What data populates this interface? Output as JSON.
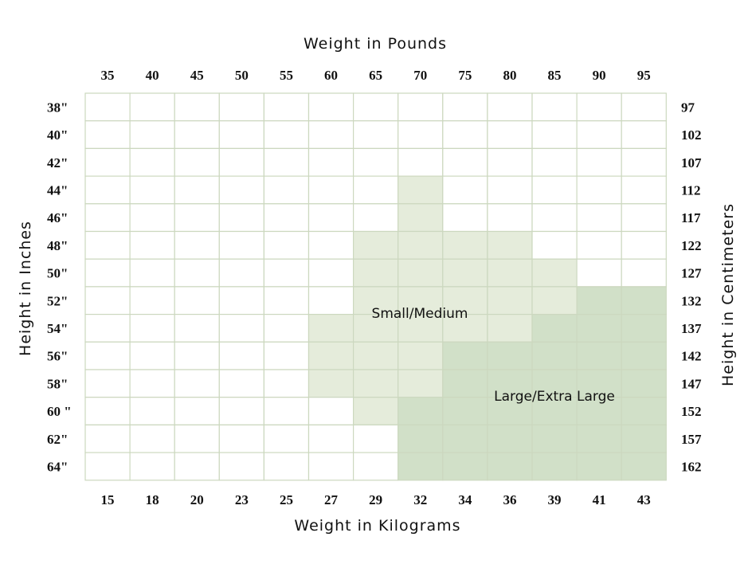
{
  "chart_data": {
    "type": "heatmap",
    "title": "",
    "xlabel_top": "Weight in Pounds",
    "xlabel_bottom": "Weight in Kilograms",
    "ylabel_left": "Height in Inches",
    "ylabel_right": "Height in Centimeters",
    "x_ticks_pounds": [
      "35",
      "40",
      "45",
      "50",
      "55",
      "60",
      "65",
      "70",
      "75",
      "80",
      "85",
      "90",
      "95"
    ],
    "x_ticks_kilograms": [
      "15",
      "18",
      "20",
      "23",
      "25",
      "27",
      "29",
      "32",
      "34",
      "36",
      "39",
      "41",
      "43"
    ],
    "y_ticks_inches": [
      "38\"",
      "40\"",
      "42\"",
      "44\"",
      "46\"",
      "48\"",
      "50\"",
      "52\"",
      "54\"",
      "56\"",
      "58\"",
      "60 \"",
      "62\"",
      "64\""
    ],
    "y_ticks_centimeters": [
      "97",
      "102",
      "107",
      "112",
      "117",
      "122",
      "127",
      "132",
      "137",
      "142",
      "147",
      "152",
      "157",
      "162"
    ],
    "categories_legend": [
      {
        "code": 1,
        "name": "Small/Medium",
        "color": "#e5ecdb"
      },
      {
        "code": 2,
        "name": "Large/Extra Large",
        "color": "#d1e0c8"
      }
    ],
    "empty_color": "#ffffff",
    "grid_color": "#ccd8bf",
    "matrix": [
      [
        0,
        0,
        0,
        0,
        0,
        0,
        0,
        0,
        0,
        0,
        0,
        0,
        0
      ],
      [
        0,
        0,
        0,
        0,
        0,
        0,
        0,
        0,
        0,
        0,
        0,
        0,
        0
      ],
      [
        0,
        0,
        0,
        0,
        0,
        0,
        0,
        0,
        0,
        0,
        0,
        0,
        0
      ],
      [
        0,
        0,
        0,
        0,
        0,
        0,
        0,
        1,
        0,
        0,
        0,
        0,
        0
      ],
      [
        0,
        0,
        0,
        0,
        0,
        0,
        0,
        1,
        0,
        0,
        0,
        0,
        0
      ],
      [
        0,
        0,
        0,
        0,
        0,
        0,
        1,
        1,
        1,
        1,
        0,
        0,
        0
      ],
      [
        0,
        0,
        0,
        0,
        0,
        0,
        1,
        1,
        1,
        1,
        1,
        0,
        0
      ],
      [
        0,
        0,
        0,
        0,
        0,
        0,
        1,
        1,
        1,
        1,
        1,
        2,
        2
      ],
      [
        0,
        0,
        0,
        0,
        0,
        1,
        1,
        1,
        1,
        1,
        2,
        2,
        2
      ],
      [
        0,
        0,
        0,
        0,
        0,
        1,
        1,
        1,
        2,
        2,
        2,
        2,
        2
      ],
      [
        0,
        0,
        0,
        0,
        0,
        1,
        1,
        1,
        2,
        2,
        2,
        2,
        2
      ],
      [
        0,
        0,
        0,
        0,
        0,
        0,
        1,
        2,
        2,
        2,
        2,
        2,
        2
      ],
      [
        0,
        0,
        0,
        0,
        0,
        0,
        0,
        2,
        2,
        2,
        2,
        2,
        2
      ],
      [
        0,
        0,
        0,
        0,
        0,
        0,
        0,
        2,
        2,
        2,
        2,
        2,
        2
      ]
    ]
  }
}
